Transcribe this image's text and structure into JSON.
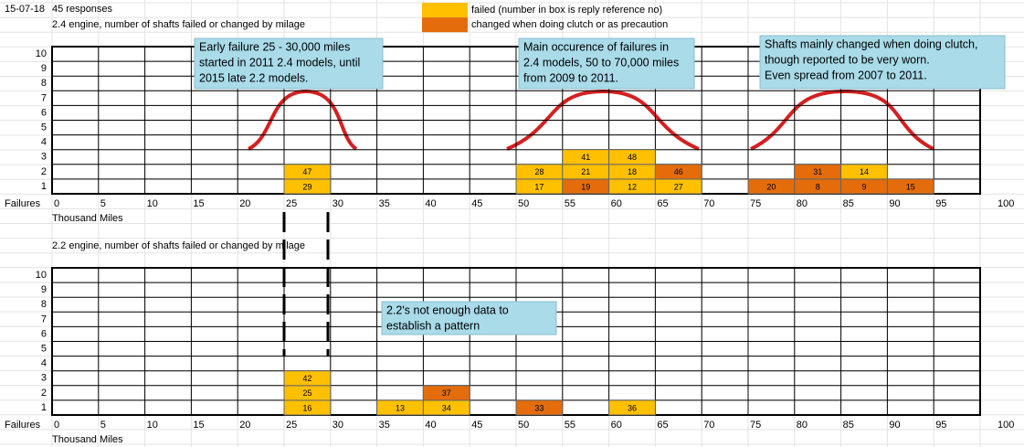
{
  "header": {
    "date": "15-07-18",
    "responses": "45 responses"
  },
  "legend": [
    {
      "label": "failed  (number in box is reply reference no)",
      "color": "#ffc000"
    },
    {
      "label": "changed when doing clutch or as precaution",
      "color": "#e46c0a"
    }
  ],
  "charts": [
    {
      "title": "2.4 engine, number of shafts failed or changed by milage",
      "y_labels": [
        "10",
        "9",
        "8",
        "7",
        "6",
        "5",
        "4",
        "3",
        "2",
        "1"
      ],
      "x_prefix": "Failures",
      "x_labels": [
        "0",
        "5",
        "10",
        "15",
        "20",
        "25",
        "30",
        "35",
        "40",
        "45",
        "50",
        "55",
        "60",
        "65",
        "70",
        "75",
        "80",
        "85",
        "90",
        "95",
        "100"
      ],
      "x_title": "Thousand Miles",
      "bins": [
        [],
        [],
        [],
        [],
        [],
        [
          {
            "ref": "29",
            "legend": 0
          },
          {
            "ref": "47",
            "legend": 0
          }
        ],
        [],
        [],
        [],
        [],
        [
          {
            "ref": "17",
            "legend": 0
          },
          {
            "ref": "28",
            "legend": 0
          }
        ],
        [
          {
            "ref": "19",
            "legend": 1
          },
          {
            "ref": "21",
            "legend": 0
          },
          {
            "ref": "41",
            "legend": 0
          }
        ],
        [
          {
            "ref": "12",
            "legend": 0
          },
          {
            "ref": "18",
            "legend": 0
          },
          {
            "ref": "48",
            "legend": 0
          }
        ],
        [
          {
            "ref": "27",
            "legend": 0
          },
          {
            "ref": "46",
            "legend": 1
          }
        ],
        [],
        [
          {
            "ref": "20",
            "legend": 1
          }
        ],
        [
          {
            "ref": "8",
            "legend": 1
          },
          {
            "ref": "31",
            "legend": 1
          }
        ],
        [
          {
            "ref": "9",
            "legend": 1
          },
          {
            "ref": "14",
            "legend": 0
          }
        ],
        [
          {
            "ref": "15",
            "legend": 1
          }
        ],
        []
      ],
      "notes": [
        {
          "lines": [
            "Early failure 25 - 30,000 miles",
            "started in 2011 2.4 models, until",
            "2015  late 2.2 models."
          ]
        },
        {
          "lines": [
            "Main occurence of failures in",
            "2.4 models, 50 to 70,000 miles",
            "from 2009 to 2011."
          ]
        },
        {
          "lines": [
            "Shafts mainly changed when doing clutch,",
            "though reported to be very worn.",
            "Even spread from 2007 to 2011."
          ]
        }
      ]
    },
    {
      "title": "2.2 engine, number of shafts failed or changed by milage",
      "y_labels": [
        "10",
        "9",
        "8",
        "7",
        "6",
        "5",
        "4",
        "3",
        "2",
        "1"
      ],
      "x_prefix": "Failures",
      "x_labels": [
        "0",
        "5",
        "10",
        "15",
        "20",
        "25",
        "30",
        "35",
        "40",
        "45",
        "50",
        "55",
        "60",
        "65",
        "70",
        "75",
        "80",
        "85",
        "90",
        "95",
        "100"
      ],
      "x_title": "Thousand Miles",
      "bins": [
        [],
        [],
        [],
        [],
        [],
        [
          {
            "ref": "16",
            "legend": 0
          },
          {
            "ref": "25",
            "legend": 0
          },
          {
            "ref": "42",
            "legend": 0
          }
        ],
        [],
        [
          {
            "ref": "13",
            "legend": 0
          }
        ],
        [
          {
            "ref": "34",
            "legend": 0
          },
          {
            "ref": "37",
            "legend": 1
          }
        ],
        [],
        [
          {
            "ref": "33",
            "legend": 1
          }
        ],
        [],
        [
          {
            "ref": "36",
            "legend": 0
          }
        ],
        [],
        [],
        [],
        [],
        [],
        [],
        []
      ],
      "notes": [
        {
          "lines": [
            "2.2's not enough data to",
            "establish a pattern"
          ]
        }
      ]
    }
  ]
}
